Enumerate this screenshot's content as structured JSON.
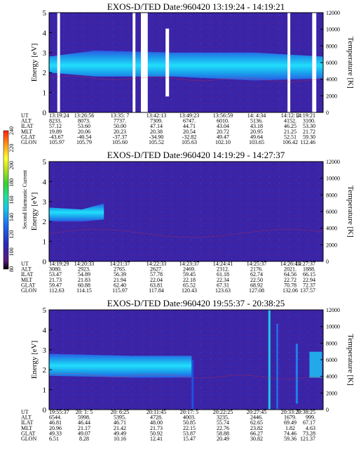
{
  "chart_data": {
    "type": "heatmap",
    "colorbar": {
      "label": "Second Harmonic Current",
      "ticks": [
        80,
        100,
        120,
        140,
        160,
        180,
        200,
        220,
        240
      ],
      "colors": [
        "#000000",
        "#5a1a78",
        "#2a2ab8",
        "#1e6cf0",
        "#16c8e8",
        "#20e0a0",
        "#38d030",
        "#b8e020",
        "#ffff30",
        "#ff9818",
        "#ff2010"
      ]
    },
    "panels": [
      {
        "title": "EXOS-D/TED   Date:960420   13:19:24 - 14:19:21",
        "ylabel": "Energy [eV]",
        "y2label": "Temperature [K]",
        "ylim": [
          0,
          5
        ],
        "y2lim": [
          0,
          12000
        ],
        "yticks": [
          "0",
          "1",
          "2",
          "3",
          "4",
          "5"
        ],
        "y2ticks": [
          "0",
          "2000",
          "4000",
          "6000",
          "8000",
          "10000",
          "12000"
        ],
        "band": [
          [
            0,
            2.0,
            2.8
          ],
          [
            0.17,
            1.8,
            3.1
          ],
          [
            0.45,
            1.8,
            3.0
          ],
          [
            0.75,
            1.6,
            3.0
          ],
          [
            1,
            1.7,
            2.8
          ]
        ],
        "gaps": [
          [
            0.03,
            0.04
          ],
          [
            0.305,
            0.315
          ],
          [
            0.335,
            0.36
          ],
          [
            0.87,
            0.88
          ],
          [
            0.96,
            0.975
          ]
        ],
        "eph_labels": [
          "UT",
          "ALT",
          "ILAT",
          "MLT",
          "GLAT",
          "GLON"
        ],
        "eph": [
          [
            "13:19:24",
            "8233.",
            "57.12",
            "19.89",
            "-43.67",
            "105.97"
          ],
          [
            "13:26:56",
            "8073.",
            "53.60",
            "20.06",
            "-40.54",
            "105.79"
          ],
          [
            "13:35: 7",
            "7737.",
            "50.00",
            "20.23",
            "-37.37",
            "105.60"
          ],
          [
            "13:42:13",
            "7309.",
            "47.14",
            "20.38",
            "-34.90",
            "105.52"
          ],
          [
            "13:49:23",
            "6747.",
            "44.71",
            "20.54",
            "-32.82",
            "105.63"
          ],
          [
            "13:56:59",
            "6010.",
            "43.04",
            "20.72",
            "49.47",
            "102.10"
          ],
          [
            "14: 4:34",
            "5136.",
            "43.18",
            "20.95",
            "49.64",
            "103.65"
          ],
          [
            "14:12: 2",
            "4152.",
            "46.25",
            "21.25",
            "52.51",
            "106.42"
          ],
          [
            "14:19:21",
            "3100.",
            "53.30",
            "21.72",
            "59.30",
            "112.46"
          ]
        ]
      },
      {
        "title": "EXOS-D/TED   Date:960420   14:19:29 - 14:27:37",
        "ylabel": "Energy [eV]",
        "y2label": "Temperature [K]",
        "ylim": [
          0,
          5
        ],
        "y2lim": [
          0,
          12000
        ],
        "yticks": [
          "0",
          "1",
          "2",
          "3",
          "4",
          "5"
        ],
        "y2ticks": [
          "0",
          "2000",
          "4000",
          "6000",
          "8000",
          "10000",
          "12000"
        ],
        "band": [
          [
            0,
            2.0,
            2.7
          ],
          [
            0.12,
            2.0,
            2.6
          ],
          [
            0.2,
            2.1,
            2.9
          ]
        ],
        "gaps": [],
        "eph_labels": [
          "UT",
          "ALT",
          "ILAT",
          "MLT",
          "GLAT",
          "GLON"
        ],
        "eph": [
          [
            "14:19:29",
            "3080.",
            "53.47",
            "21.73",
            "59.47",
            "112.63"
          ],
          [
            "14:20:33",
            "2923.",
            "54.89",
            "21.83",
            "60.88",
            "114.15"
          ],
          [
            "14:21:37",
            "2765.",
            "56.39",
            "21.94",
            "62.40",
            "115.97"
          ],
          [
            "14:22:33",
            "2627.",
            "57.78",
            "22.04",
            "63.81",
            "117.84"
          ],
          [
            "14:23:37",
            "2469.",
            "59.45",
            "22.18",
            "65.52",
            "120.43"
          ],
          [
            "14:24:41",
            "2312.",
            "61.18",
            "22.34",
            "67.31",
            "123.63"
          ],
          [
            "14:25:37",
            "2176.",
            "62.74",
            "22.50",
            "68.92",
            "127.08"
          ],
          [
            "14:26:41",
            "2021.",
            "64.56",
            "22.72",
            "70.78",
            "132.06"
          ],
          [
            "14:27:37",
            "1888.",
            "66.15",
            "22.94",
            "72.37",
            "137.57"
          ]
        ]
      },
      {
        "title": "EXOS-D/TED   Date:960420   19:55:37 - 20:38:25",
        "ylabel": "Energy [eV]",
        "y2label": "Temperature [K]",
        "ylim": [
          0,
          5
        ],
        "y2lim": [
          0,
          12000
        ],
        "yticks": [
          "0",
          "1",
          "2",
          "3",
          "4",
          "5"
        ],
        "y2ticks": [
          "0",
          "2000",
          "4000",
          "6000",
          "8000",
          "10000",
          "12000"
        ],
        "band": [
          [
            0,
            1.7,
            2.8
          ],
          [
            0.3,
            1.6,
            2.7
          ],
          [
            0.52,
            1.6,
            2.7
          ]
        ],
        "gaps": [],
        "eph_labels": [
          "UT",
          "ALT",
          "ILAT",
          "MLT",
          "GLAT",
          "GLON"
        ],
        "eph": [
          [
            "19:55:37",
            "6544.",
            "46.81",
            "20.96",
            "49.33",
            "6.51"
          ],
          [
            "20: 1: 5",
            "5998.",
            "46.44",
            "21.17",
            "49.07",
            "8.28"
          ],
          [
            "20: 6:25",
            "5395.",
            "46.71",
            "21.42",
            "49.49",
            "10.16"
          ],
          [
            "20:11:45",
            "4728.",
            "48.00",
            "21.73",
            "50.92",
            "12.41"
          ],
          [
            "20:17: 5",
            "4003.",
            "50.85",
            "22.15",
            "53.87",
            "15.47"
          ],
          [
            "20:22:25",
            "3235.",
            "55.74",
            "22.76",
            "58.88",
            "20.49"
          ],
          [
            "20:27:45",
            "2446.",
            "62.65",
            "23.82",
            "66.27",
            "30.82"
          ],
          [
            "20:33: 5",
            "1679.",
            "69.49",
            "1.82",
            "74.46",
            "59.36"
          ],
          [
            "20:38:25",
            "999.",
            "67.17",
            "4.63",
            "73.28",
            "121.37"
          ]
        ]
      }
    ]
  }
}
